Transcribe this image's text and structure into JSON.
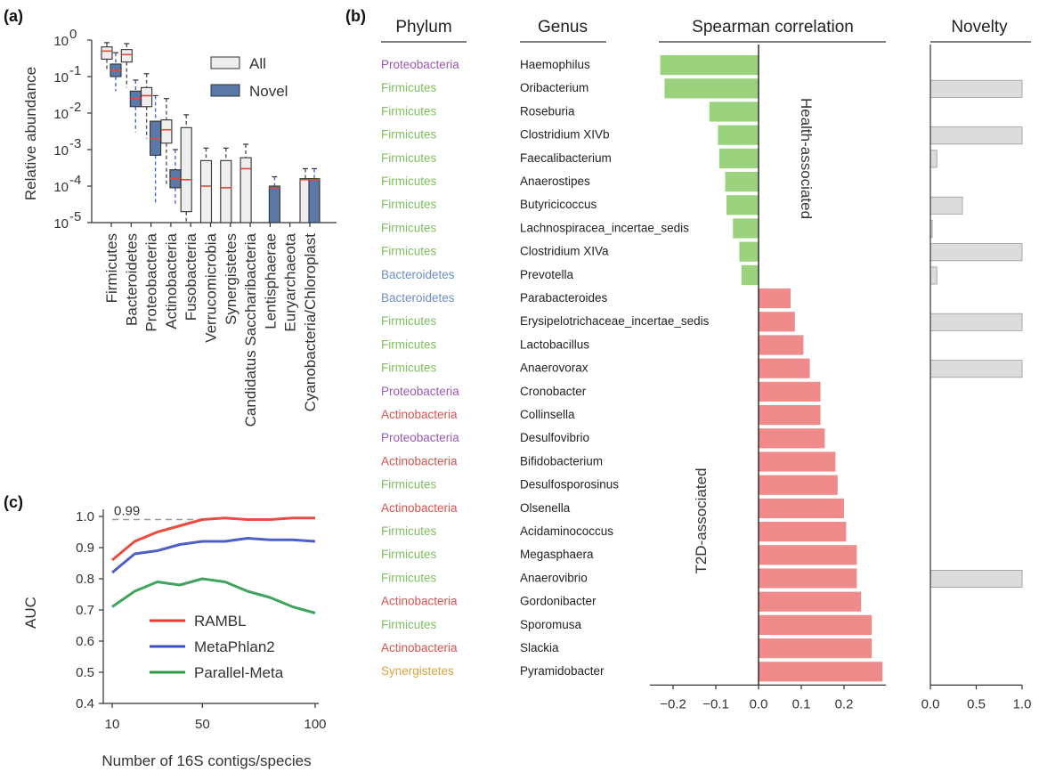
{
  "panels": {
    "a": "(a)",
    "b": "(b)",
    "c": "(c)"
  },
  "colors": {
    "all_fill": "#eeeeee",
    "novel_fill": "#5a78a8",
    "median": "#e04a3a",
    "health": "#9ad27d",
    "t2d": "#ef8b8b",
    "novelty": "#dcdcdc",
    "Proteobacteria": "#9b59b6",
    "Firmicutes": "#7fbf5f",
    "Bacteroidetes": "#6b8fc4",
    "Actinobacteria": "#d9534f",
    "Synergistetes": "#d9a441"
  },
  "chart_data": [
    {
      "id": "a",
      "type": "box",
      "ylabel": "Relative abundance",
      "yscale": "log",
      "ylim": [
        1e-05,
        1
      ],
      "yticks": [
        {
          "v": 0,
          "label": "10"
        },
        {
          "v": -1,
          "label": "10"
        },
        {
          "v": -2,
          "label": "10"
        },
        {
          "v": -3,
          "label": "10"
        },
        {
          "v": -4,
          "label": "10"
        },
        {
          "v": -5,
          "label": "10"
        }
      ],
      "ytick_exps": [
        "0",
        "-1",
        "-2",
        "-3",
        "-4",
        "-5"
      ],
      "categories": [
        "Firmicutes",
        "Bacteroidetes",
        "Proteobacteria",
        "Actinobacteria",
        "Fusobacteria",
        "Verrucomicrobia",
        "Synergistetes",
        "Candidatus Saccharibacteria",
        "Lentisphaerae",
        "Euryarchaeota",
        "Cyanobacteria/Chloroplast"
      ],
      "legend": [
        "All",
        "Novel"
      ],
      "legend_position": "top-right",
      "series": [
        {
          "name": "All",
          "boxes": [
            {
              "i": 0,
              "q1": 0.3,
              "med": 0.5,
              "q3": 0.65,
              "lo": 0.15,
              "hi": 0.85
            },
            {
              "i": 1,
              "q1": 0.25,
              "med": 0.4,
              "q3": 0.55,
              "lo": 0.05,
              "hi": 0.8
            },
            {
              "i": 2,
              "q1": 0.015,
              "med": 0.03,
              "q3": 0.05,
              "lo": 0.002,
              "hi": 0.12
            },
            {
              "i": 3,
              "q1": 0.0015,
              "med": 0.0035,
              "q3": 0.0065,
              "lo": 0.0001,
              "hi": 0.025
            },
            {
              "i": 4,
              "q1": 2e-05,
              "med": 0.00015,
              "q3": 0.004,
              "lo": 1e-05,
              "hi": 0.009
            },
            {
              "i": 5,
              "q1": 1e-05,
              "med": 0.0001,
              "q3": 0.0005,
              "lo": 1e-05,
              "hi": 0.0011
            },
            {
              "i": 6,
              "q1": 1e-05,
              "med": 9e-05,
              "q3": 0.0005,
              "lo": 1e-05,
              "hi": 0.0011
            },
            {
              "i": 7,
              "q1": 1e-05,
              "med": 0.0003,
              "q3": 0.0006,
              "lo": 1e-05,
              "hi": 0.0014
            },
            {
              "i": 10,
              "q1": 1e-05,
              "med": 0.00015,
              "q3": 0.00016,
              "lo": 1e-05,
              "hi": 0.0003
            }
          ]
        },
        {
          "name": "Novel",
          "boxes": [
            {
              "i": 0,
              "q1": 0.1,
              "med": 0.15,
              "q3": 0.22,
              "lo": 0.04,
              "hi": 0.45
            },
            {
              "i": 1,
              "q1": 0.015,
              "med": 0.025,
              "q3": 0.04,
              "lo": 0.003,
              "hi": 0.08
            },
            {
              "i": 2,
              "q1": 0.0007,
              "med": 0.002,
              "q3": 0.006,
              "lo": 3e-05,
              "hi": 0.03
            },
            {
              "i": 3,
              "q1": 9e-05,
              "med": 0.00016,
              "q3": 0.00028,
              "lo": 3e-05,
              "hi": 0.001
            },
            {
              "i": 8,
              "q1": 1e-05,
              "med": 9e-05,
              "q3": 0.0001,
              "lo": 1e-05,
              "hi": 0.00018
            },
            {
              "i": 10,
              "q1": 1e-05,
              "med": 0.00015,
              "q3": 0.00016,
              "lo": 1e-05,
              "hi": 0.0003
            }
          ]
        }
      ]
    },
    {
      "id": "b",
      "type": "bar",
      "headers": {
        "phylum": "Phylum",
        "genus": "Genus",
        "corr": "Spearman correlation",
        "novelty": "Novelty"
      },
      "annotations": {
        "health": "Health-associated",
        "t2d": "T2D-associated"
      },
      "corr_xlim": [
        -0.25,
        0.3
      ],
      "corr_ticks": [
        {
          "v": -0.2,
          "label": "−0.2"
        },
        {
          "v": -0.1,
          "label": "−0.1"
        },
        {
          "v": 0.0,
          "label": "0.0"
        },
        {
          "v": 0.1,
          "label": "0.1"
        },
        {
          "v": 0.2,
          "label": "0.2"
        }
      ],
      "novelty_xlim": [
        0,
        1
      ],
      "novelty_ticks": [
        {
          "v": 0,
          "label": "0.0"
        },
        {
          "v": 0.5,
          "label": "0.5"
        },
        {
          "v": 1,
          "label": "1.0"
        }
      ],
      "rows": [
        {
          "phylum": "Proteobacteria",
          "genus": "Haemophilus",
          "corr": -0.23,
          "novelty": 0
        },
        {
          "phylum": "Firmicutes",
          "genus": "Oribacterium",
          "corr": -0.22,
          "novelty": 1
        },
        {
          "phylum": "Firmicutes",
          "genus": "Roseburia",
          "corr": -0.115,
          "novelty": 0
        },
        {
          "phylum": "Firmicutes",
          "genus": "Clostridium XIVb",
          "corr": -0.095,
          "novelty": 1
        },
        {
          "phylum": "Firmicutes",
          "genus": "Faecalibacterium",
          "corr": -0.092,
          "novelty": 0.07
        },
        {
          "phylum": "Firmicutes",
          "genus": "Anaerostipes",
          "corr": -0.078,
          "novelty": 0
        },
        {
          "phylum": "Firmicutes",
          "genus": "Butyricicoccus",
          "corr": -0.075,
          "novelty": 0.35
        },
        {
          "phylum": "Firmicutes",
          "genus": "Lachnospiracea_incertae_sedis",
          "corr": -0.06,
          "novelty": 0.02
        },
        {
          "phylum": "Firmicutes",
          "genus": "Clostridium XIVa",
          "corr": -0.045,
          "novelty": 1
        },
        {
          "phylum": "Bacteroidetes",
          "genus": "Prevotella",
          "corr": -0.04,
          "novelty": 0.07
        },
        {
          "phylum": "Bacteroidetes",
          "genus": "Parabacteroides",
          "corr": 0.075,
          "novelty": 0
        },
        {
          "phylum": "Firmicutes",
          "genus": "Erysipelotrichaceae_incertae_sedis",
          "corr": 0.085,
          "novelty": 1
        },
        {
          "phylum": "Firmicutes",
          "genus": "Lactobacillus",
          "corr": 0.105,
          "novelty": 0
        },
        {
          "phylum": "Firmicutes",
          "genus": "Anaerovorax",
          "corr": 0.12,
          "novelty": 1
        },
        {
          "phylum": "Proteobacteria",
          "genus": "Cronobacter",
          "corr": 0.145,
          "novelty": 0
        },
        {
          "phylum": "Actinobacteria",
          "genus": "Collinsella",
          "corr": 0.145,
          "novelty": 0
        },
        {
          "phylum": "Proteobacteria",
          "genus": "Desulfovibrio",
          "corr": 0.155,
          "novelty": 0
        },
        {
          "phylum": "Actinobacteria",
          "genus": "Bifidobacterium",
          "corr": 0.18,
          "novelty": 0
        },
        {
          "phylum": "Firmicutes",
          "genus": "Desulfosporosinus",
          "corr": 0.185,
          "novelty": 0
        },
        {
          "phylum": "Actinobacteria",
          "genus": "Olsenella",
          "corr": 0.2,
          "novelty": 0
        },
        {
          "phylum": "Firmicutes",
          "genus": "Acidaminococcus",
          "corr": 0.205,
          "novelty": 0
        },
        {
          "phylum": "Firmicutes",
          "genus": "Megasphaera",
          "corr": 0.23,
          "novelty": 0
        },
        {
          "phylum": "Firmicutes",
          "genus": "Anaerovibrio",
          "corr": 0.23,
          "novelty": 1
        },
        {
          "phylum": "Actinobacteria",
          "genus": "Gordonibacter",
          "corr": 0.24,
          "novelty": 0
        },
        {
          "phylum": "Firmicutes",
          "genus": "Sporomusa",
          "corr": 0.265,
          "novelty": 0
        },
        {
          "phylum": "Actinobacteria",
          "genus": "Slackia",
          "corr": 0.265,
          "novelty": 0
        },
        {
          "phylum": "Synergistetes",
          "genus": "Pyramidobacter",
          "corr": 0.29,
          "novelty": 0
        }
      ]
    },
    {
      "id": "c",
      "type": "line",
      "xlabel": "Number of 16S contigs/species",
      "ylabel": "AUC",
      "xlim": [
        10,
        100
      ],
      "ylim": [
        0.4,
        1.0
      ],
      "xticks": [
        10,
        50,
        100
      ],
      "yticks": [
        "0.4",
        "0.5",
        "0.6",
        "0.7",
        "0.8",
        "0.9",
        "1.0"
      ],
      "reference": {
        "y": 0.99,
        "label": "0.99"
      },
      "legend_position": "bottom-left",
      "x": [
        10,
        20,
        30,
        40,
        50,
        60,
        70,
        80,
        90,
        100
      ],
      "series": [
        {
          "name": "RAMBL",
          "color": "#e8392e",
          "values": [
            0.86,
            0.92,
            0.95,
            0.97,
            0.99,
            0.995,
            0.99,
            0.99,
            0.995,
            0.995
          ]
        },
        {
          "name": "MetaPhlan2",
          "color": "#3b4fc2",
          "values": [
            0.82,
            0.88,
            0.89,
            0.91,
            0.92,
            0.92,
            0.93,
            0.925,
            0.925,
            0.92
          ]
        },
        {
          "name": "Parallel-Meta",
          "color": "#2c9a4a",
          "values": [
            0.71,
            0.76,
            0.79,
            0.78,
            0.8,
            0.79,
            0.76,
            0.74,
            0.71,
            0.69
          ]
        }
      ]
    }
  ]
}
